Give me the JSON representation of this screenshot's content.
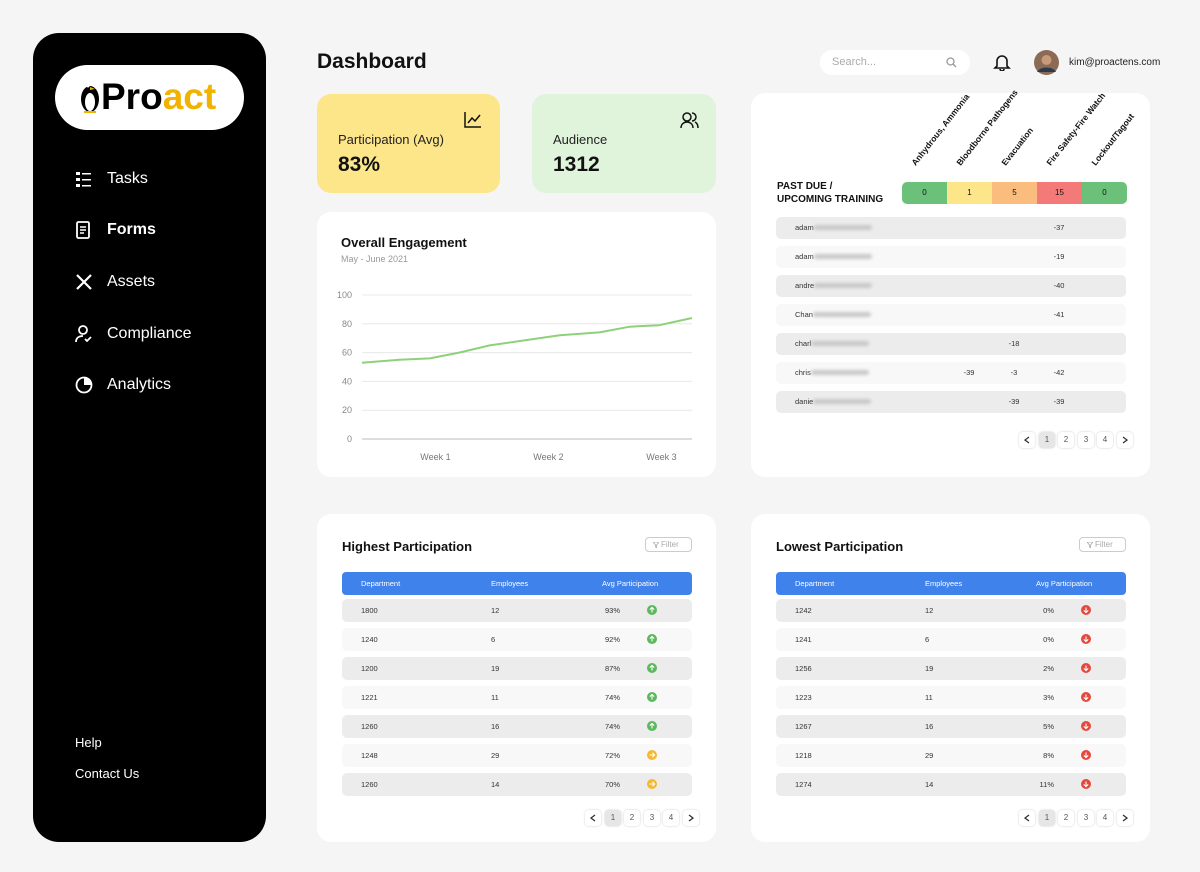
{
  "sidebar": {
    "logo_start": "Pro",
    "logo_end": "act",
    "nav": [
      "Tasks",
      "Forms",
      "Assets",
      "Compliance",
      "Analytics"
    ],
    "footer": [
      "Help",
      "Contact Us"
    ]
  },
  "header": {
    "title": "Dashboard",
    "search": "Search...",
    "user": "kim@proactens.com"
  },
  "stats": [
    {
      "label": "Participation (Avg)",
      "value": "83%",
      "color": "#fde68a"
    },
    {
      "label": "Audience",
      "value": "1312",
      "color": "#e0f4dc"
    }
  ],
  "chart_data": {
    "type": "line",
    "title": "Overall Engagement",
    "subtitle": "May - June 2021",
    "x": [
      0.35,
      0.68,
      0.95,
      1.21,
      1.48,
      1.74,
      2.1,
      2.45,
      2.72,
      2.98,
      3.27
    ],
    "values": [
      53,
      55,
      56,
      60,
      65,
      68,
      72,
      74,
      78,
      79,
      84
    ],
    "color": "#8fd07a",
    "xlim": [
      0.35,
      3.27
    ],
    "xticks": [
      {
        "value": 1,
        "label": "Week 1"
      },
      {
        "value": 2,
        "label": "Week 2"
      },
      {
        "value": 3,
        "label": "Week 3"
      }
    ],
    "ylim": [
      0,
      100
    ],
    "yticks": [
      0,
      20,
      40,
      60,
      80,
      100
    ],
    "grid": true
  },
  "training": {
    "title": [
      "PAST DUE /",
      "UPCOMING TRAINING"
    ],
    "columns": [
      "Anhydrous, Ammonia",
      "Bloodborne Pathogens",
      "Evacuation",
      "Fire Safety-Fire Watch",
      "Lockout/Tagout"
    ],
    "totals": [
      0,
      1,
      5,
      15,
      0
    ],
    "total_colors": [
      "#6cc17a",
      "#fde68a",
      "#fbbd7e",
      "#f47a7a",
      "#6cc17a"
    ],
    "rows": [
      {
        "name": "adam",
        "cells": [
          null,
          null,
          null,
          -37,
          null
        ]
      },
      {
        "name": "adam",
        "cells": [
          null,
          null,
          null,
          -19,
          null
        ]
      },
      {
        "name": "andre",
        "cells": [
          null,
          null,
          null,
          -40,
          null
        ]
      },
      {
        "name": "Chan",
        "cells": [
          null,
          null,
          null,
          -41,
          null
        ]
      },
      {
        "name": "charl",
        "cells": [
          null,
          null,
          -18,
          null,
          null
        ]
      },
      {
        "name": "chris",
        "cells": [
          null,
          -39,
          -3,
          -42,
          null
        ]
      },
      {
        "name": "danie",
        "cells": [
          null,
          null,
          -39,
          -39,
          null
        ]
      }
    ],
    "pages": [
      1,
      2,
      3,
      4
    ]
  },
  "highest": {
    "title": "Highest Participation",
    "filter": "Filter",
    "columns": [
      "Department",
      "Employees",
      "Avg Participation"
    ],
    "rows": [
      [
        1800,
        12,
        "93%"
      ],
      [
        1240,
        6,
        "92%"
      ],
      [
        1200,
        19,
        "87%"
      ],
      [
        1221,
        11,
        "74%"
      ],
      [
        1260,
        16,
        "74%"
      ],
      [
        1248,
        29,
        "72%"
      ],
      [
        1260,
        14,
        "70%"
      ]
    ],
    "icons": [
      {
        "color": "#5cb85c",
        "dir": "up"
      },
      {
        "color": "#5cb85c",
        "dir": "up"
      },
      {
        "color": "#5cb85c",
        "dir": "up"
      },
      {
        "color": "#5cb85c",
        "dir": "up"
      },
      {
        "color": "#5cb85c",
        "dir": "up"
      },
      {
        "color": "#f5b82e",
        "dir": "right"
      },
      {
        "color": "#f5b82e",
        "dir": "right"
      }
    ],
    "pages": [
      1,
      2,
      3,
      4
    ]
  },
  "lowest": {
    "title": "Lowest Participation",
    "filter": "Filter",
    "columns": [
      "Department",
      "Employees",
      "Avg Participation"
    ],
    "rows": [
      [
        1242,
        12,
        "0%"
      ],
      [
        1241,
        6,
        "0%"
      ],
      [
        1256,
        19,
        "2%"
      ],
      [
        1223,
        11,
        "3%"
      ],
      [
        1267,
        16,
        "5%"
      ],
      [
        1218,
        29,
        "8%"
      ],
      [
        1274,
        14,
        "11%"
      ]
    ],
    "icons": [
      {
        "color": "#e5483c",
        "dir": "down"
      },
      {
        "color": "#e5483c",
        "dir": "down"
      },
      {
        "color": "#e5483c",
        "dir": "down"
      },
      {
        "color": "#e5483c",
        "dir": "down"
      },
      {
        "color": "#e5483c",
        "dir": "down"
      },
      {
        "color": "#e5483c",
        "dir": "down"
      },
      {
        "color": "#e5483c",
        "dir": "down"
      }
    ],
    "pages": [
      1,
      2,
      3,
      4
    ]
  }
}
